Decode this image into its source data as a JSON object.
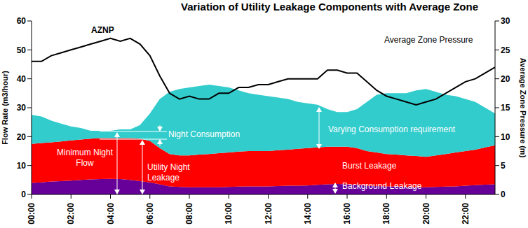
{
  "chart_data": {
    "type": "area",
    "title": "Variation of Utility Leakage Components with Average Zone",
    "ylabel": "Flow Rate (m3/hour)",
    "y2label": "Average Zone Pressure (m)",
    "x": [
      0,
      0.5,
      1,
      1.5,
      2,
      2.5,
      3,
      3.5,
      4,
      4.5,
      5,
      5.5,
      6,
      6.5,
      7,
      7.5,
      8,
      8.5,
      9,
      9.5,
      10,
      10.5,
      11,
      11.5,
      12,
      12.5,
      13,
      13.5,
      14,
      14.5,
      15,
      15.5,
      16,
      16.5,
      17,
      17.5,
      18,
      18.5,
      19,
      19.5,
      20,
      20.5,
      21,
      21.5,
      22,
      22.5,
      23,
      23.5
    ],
    "xlim": [
      0,
      23.5
    ],
    "xticks": [
      {
        "value": 0,
        "label": "00:00"
      },
      {
        "value": 2,
        "label": "02:00"
      },
      {
        "value": 4,
        "label": "04:00"
      },
      {
        "value": 6,
        "label": "06:00"
      },
      {
        "value": 8,
        "label": "08:00"
      },
      {
        "value": 10,
        "label": "10:00"
      },
      {
        "value": 12,
        "label": "12:00"
      },
      {
        "value": 14,
        "label": "14:00"
      },
      {
        "value": 16,
        "label": "16:00"
      },
      {
        "value": 18,
        "label": "18:00"
      },
      {
        "value": 20,
        "label": "20:00"
      },
      {
        "value": 22,
        "label": "22:00"
      }
    ],
    "ylim": [
      0,
      60
    ],
    "yticks": [
      0,
      10,
      20,
      30,
      40,
      50,
      60
    ],
    "y2lim": [
      0,
      30
    ],
    "y2ticks": [
      0,
      5,
      10,
      15,
      20,
      25,
      30
    ],
    "stacked": true,
    "grid": false,
    "series": [
      {
        "name": "Background Leakage",
        "type": "area",
        "color": "#660099",
        "values": [
          4,
          4.2,
          4.5,
          4.6,
          4.8,
          5,
          5.2,
          5.3,
          5.4,
          5.3,
          5,
          4.6,
          4.2,
          3.5,
          2.8,
          2.6,
          2.5,
          2.5,
          2.5,
          2.5,
          2.6,
          2.7,
          2.8,
          2.8,
          2.8,
          2.9,
          3,
          3,
          3.1,
          3.3,
          3.5,
          3.6,
          3.5,
          3.3,
          3,
          2.9,
          2.8,
          2.7,
          2.6,
          2.5,
          2.5,
          2.6,
          2.7,
          2.8,
          3,
          3.2,
          3.4,
          3.5
        ]
      },
      {
        "name": "Burst Leakage",
        "type": "area",
        "color": "#ff0000",
        "values": [
          13.5,
          13.6,
          13.5,
          13.7,
          13.9,
          14,
          14.1,
          14.2,
          14.1,
          14.2,
          14.5,
          14.7,
          14.3,
          12.5,
          11.2,
          10.9,
          11,
          11.3,
          11.5,
          11.8,
          11.9,
          12.1,
          12.2,
          12.2,
          12.2,
          12.4,
          12.5,
          12.8,
          12.9,
          13,
          13,
          12.9,
          13,
          12.7,
          12,
          11.6,
          11.2,
          11.1,
          10.9,
          10.8,
          10.5,
          10.9,
          11.3,
          11.7,
          12,
          12.3,
          12.9,
          13.5
        ]
      },
      {
        "name": "Varying Consumption requirement",
        "type": "area",
        "color": "#33cccc",
        "values": [
          10,
          9.2,
          7.5,
          6.2,
          4.8,
          4,
          2.7,
          2.5,
          2.5,
          3,
          3,
          4.7,
          9.5,
          17,
          21.5,
          23,
          23.5,
          23.7,
          24,
          23.2,
          22.5,
          21.2,
          20,
          19.5,
          19,
          18.2,
          17.5,
          16.2,
          15.5,
          14.7,
          13,
          12,
          12,
          13.5,
          17,
          20,
          21,
          21.2,
          21.5,
          22.7,
          23.5,
          22,
          20.5,
          19.5,
          18,
          16.5,
          13.7,
          11
        ]
      },
      {
        "name": "Average Zone Pressure",
        "type": "line",
        "axis": "y2",
        "color": "#000000",
        "values": [
          23,
          23,
          24,
          24.5,
          25,
          25.5,
          26,
          26.5,
          27,
          26.5,
          27,
          26,
          24,
          20.5,
          17.5,
          16.5,
          17,
          16.5,
          16.5,
          17.5,
          17.5,
          18.5,
          18.5,
          19,
          19,
          19.5,
          20,
          20,
          20,
          20,
          21.5,
          21.5,
          21,
          21,
          19.5,
          18,
          17,
          16.5,
          16,
          15.5,
          16,
          16.5,
          17.5,
          18.5,
          19.5,
          20,
          21,
          22
        ]
      }
    ],
    "annotations": [
      "AZNP",
      "Night Consumption",
      "Minimum Night Flow",
      "Utility Night Leakage"
    ]
  }
}
